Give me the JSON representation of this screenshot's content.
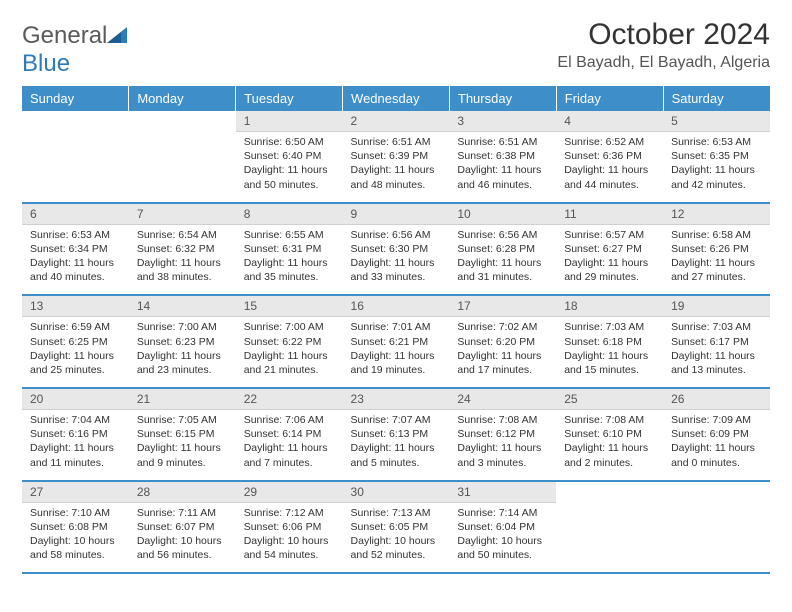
{
  "logo": {
    "word1": "General",
    "word2": "Blue"
  },
  "title": "October 2024",
  "location": "El Bayadh, El Bayadh, Algeria",
  "colors": {
    "header_bg": "#3d8ec9",
    "header_text": "#ffffff",
    "daynum_bg": "#e8e8e8",
    "border": "#3d8ec9",
    "page_bg": "#ffffff",
    "text": "#333333",
    "logo_gray": "#5a5a5a",
    "logo_blue": "#2d7bb8"
  },
  "dayHeaders": [
    "Sunday",
    "Monday",
    "Tuesday",
    "Wednesday",
    "Thursday",
    "Friday",
    "Saturday"
  ],
  "weeks": [
    [
      {
        "n": "",
        "sr": "",
        "ss": "",
        "dl": ""
      },
      {
        "n": "",
        "sr": "",
        "ss": "",
        "dl": ""
      },
      {
        "n": "1",
        "sr": "Sunrise: 6:50 AM",
        "ss": "Sunset: 6:40 PM",
        "dl": "Daylight: 11 hours and 50 minutes."
      },
      {
        "n": "2",
        "sr": "Sunrise: 6:51 AM",
        "ss": "Sunset: 6:39 PM",
        "dl": "Daylight: 11 hours and 48 minutes."
      },
      {
        "n": "3",
        "sr": "Sunrise: 6:51 AM",
        "ss": "Sunset: 6:38 PM",
        "dl": "Daylight: 11 hours and 46 minutes."
      },
      {
        "n": "4",
        "sr": "Sunrise: 6:52 AM",
        "ss": "Sunset: 6:36 PM",
        "dl": "Daylight: 11 hours and 44 minutes."
      },
      {
        "n": "5",
        "sr": "Sunrise: 6:53 AM",
        "ss": "Sunset: 6:35 PM",
        "dl": "Daylight: 11 hours and 42 minutes."
      }
    ],
    [
      {
        "n": "6",
        "sr": "Sunrise: 6:53 AM",
        "ss": "Sunset: 6:34 PM",
        "dl": "Daylight: 11 hours and 40 minutes."
      },
      {
        "n": "7",
        "sr": "Sunrise: 6:54 AM",
        "ss": "Sunset: 6:32 PM",
        "dl": "Daylight: 11 hours and 38 minutes."
      },
      {
        "n": "8",
        "sr": "Sunrise: 6:55 AM",
        "ss": "Sunset: 6:31 PM",
        "dl": "Daylight: 11 hours and 35 minutes."
      },
      {
        "n": "9",
        "sr": "Sunrise: 6:56 AM",
        "ss": "Sunset: 6:30 PM",
        "dl": "Daylight: 11 hours and 33 minutes."
      },
      {
        "n": "10",
        "sr": "Sunrise: 6:56 AM",
        "ss": "Sunset: 6:28 PM",
        "dl": "Daylight: 11 hours and 31 minutes."
      },
      {
        "n": "11",
        "sr": "Sunrise: 6:57 AM",
        "ss": "Sunset: 6:27 PM",
        "dl": "Daylight: 11 hours and 29 minutes."
      },
      {
        "n": "12",
        "sr": "Sunrise: 6:58 AM",
        "ss": "Sunset: 6:26 PM",
        "dl": "Daylight: 11 hours and 27 minutes."
      }
    ],
    [
      {
        "n": "13",
        "sr": "Sunrise: 6:59 AM",
        "ss": "Sunset: 6:25 PM",
        "dl": "Daylight: 11 hours and 25 minutes."
      },
      {
        "n": "14",
        "sr": "Sunrise: 7:00 AM",
        "ss": "Sunset: 6:23 PM",
        "dl": "Daylight: 11 hours and 23 minutes."
      },
      {
        "n": "15",
        "sr": "Sunrise: 7:00 AM",
        "ss": "Sunset: 6:22 PM",
        "dl": "Daylight: 11 hours and 21 minutes."
      },
      {
        "n": "16",
        "sr": "Sunrise: 7:01 AM",
        "ss": "Sunset: 6:21 PM",
        "dl": "Daylight: 11 hours and 19 minutes."
      },
      {
        "n": "17",
        "sr": "Sunrise: 7:02 AM",
        "ss": "Sunset: 6:20 PM",
        "dl": "Daylight: 11 hours and 17 minutes."
      },
      {
        "n": "18",
        "sr": "Sunrise: 7:03 AM",
        "ss": "Sunset: 6:18 PM",
        "dl": "Daylight: 11 hours and 15 minutes."
      },
      {
        "n": "19",
        "sr": "Sunrise: 7:03 AM",
        "ss": "Sunset: 6:17 PM",
        "dl": "Daylight: 11 hours and 13 minutes."
      }
    ],
    [
      {
        "n": "20",
        "sr": "Sunrise: 7:04 AM",
        "ss": "Sunset: 6:16 PM",
        "dl": "Daylight: 11 hours and 11 minutes."
      },
      {
        "n": "21",
        "sr": "Sunrise: 7:05 AM",
        "ss": "Sunset: 6:15 PM",
        "dl": "Daylight: 11 hours and 9 minutes."
      },
      {
        "n": "22",
        "sr": "Sunrise: 7:06 AM",
        "ss": "Sunset: 6:14 PM",
        "dl": "Daylight: 11 hours and 7 minutes."
      },
      {
        "n": "23",
        "sr": "Sunrise: 7:07 AM",
        "ss": "Sunset: 6:13 PM",
        "dl": "Daylight: 11 hours and 5 minutes."
      },
      {
        "n": "24",
        "sr": "Sunrise: 7:08 AM",
        "ss": "Sunset: 6:12 PM",
        "dl": "Daylight: 11 hours and 3 minutes."
      },
      {
        "n": "25",
        "sr": "Sunrise: 7:08 AM",
        "ss": "Sunset: 6:10 PM",
        "dl": "Daylight: 11 hours and 2 minutes."
      },
      {
        "n": "26",
        "sr": "Sunrise: 7:09 AM",
        "ss": "Sunset: 6:09 PM",
        "dl": "Daylight: 11 hours and 0 minutes."
      }
    ],
    [
      {
        "n": "27",
        "sr": "Sunrise: 7:10 AM",
        "ss": "Sunset: 6:08 PM",
        "dl": "Daylight: 10 hours and 58 minutes."
      },
      {
        "n": "28",
        "sr": "Sunrise: 7:11 AM",
        "ss": "Sunset: 6:07 PM",
        "dl": "Daylight: 10 hours and 56 minutes."
      },
      {
        "n": "29",
        "sr": "Sunrise: 7:12 AM",
        "ss": "Sunset: 6:06 PM",
        "dl": "Daylight: 10 hours and 54 minutes."
      },
      {
        "n": "30",
        "sr": "Sunrise: 7:13 AM",
        "ss": "Sunset: 6:05 PM",
        "dl": "Daylight: 10 hours and 52 minutes."
      },
      {
        "n": "31",
        "sr": "Sunrise: 7:14 AM",
        "ss": "Sunset: 6:04 PM",
        "dl": "Daylight: 10 hours and 50 minutes."
      },
      {
        "n": "",
        "sr": "",
        "ss": "",
        "dl": ""
      },
      {
        "n": "",
        "sr": "",
        "ss": "",
        "dl": ""
      }
    ]
  ]
}
